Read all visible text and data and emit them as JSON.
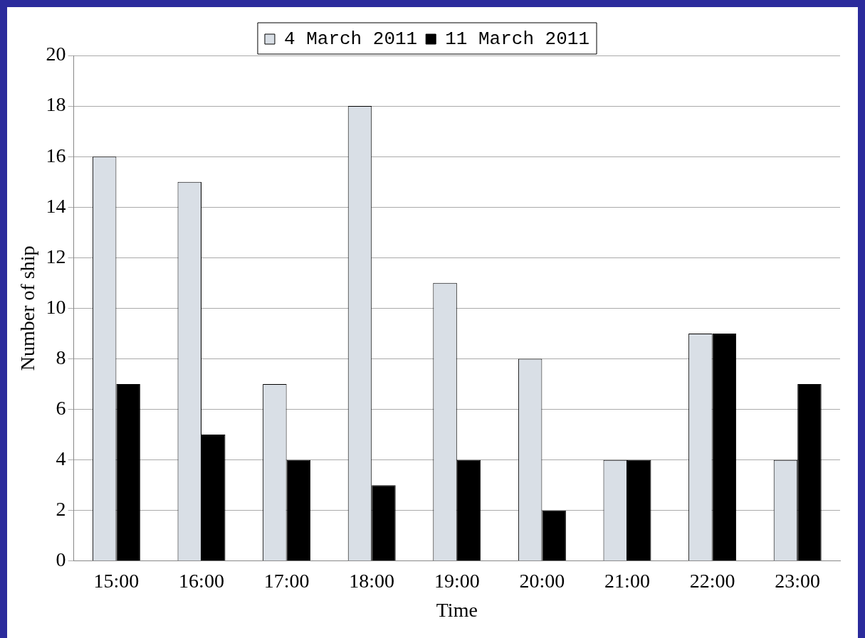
{
  "chart_data": {
    "type": "bar",
    "xlabel": "Time",
    "ylabel": "Number of ship",
    "categories": [
      "15:00",
      "16:00",
      "17:00",
      "18:00",
      "19:00",
      "20:00",
      "21:00",
      "22:00",
      "23:00"
    ],
    "series": [
      {
        "name": "4 March 2011",
        "color": "#d9dfe6",
        "values": [
          16,
          15,
          7,
          18,
          11,
          8,
          4,
          9,
          4
        ]
      },
      {
        "name": "11 March 2011",
        "color": "#000000",
        "values": [
          7,
          5,
          4,
          3,
          4,
          2,
          4,
          9,
          7
        ]
      }
    ],
    "ylim": [
      0,
      20
    ],
    "yticks": [
      0,
      2,
      4,
      6,
      8,
      10,
      12,
      14,
      16,
      18,
      20
    ],
    "grid": "y",
    "legend": "top"
  }
}
